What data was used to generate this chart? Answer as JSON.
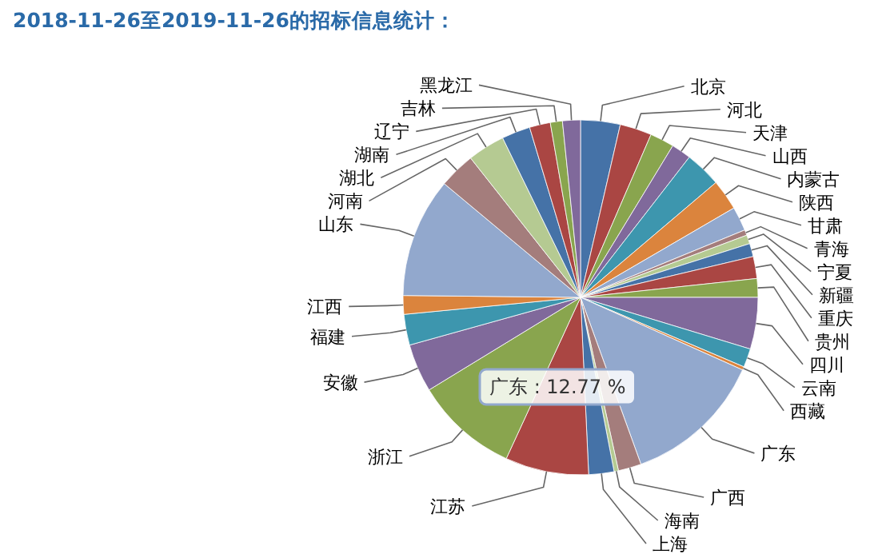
{
  "chart_data": {
    "type": "pie",
    "title": "2018-11-26至2019-11-26的招标信息统计：",
    "categories": [
      "北京",
      "河北",
      "天津",
      "山西",
      "内蒙古",
      "陕西",
      "甘肃",
      "青海",
      "宁夏",
      "新疆",
      "重庆",
      "贵州",
      "四川",
      "云南",
      "西藏",
      "广东",
      "广西",
      "海南",
      "上海",
      "江苏",
      "浙江",
      "安徽",
      "福建",
      "江西",
      "山东",
      "河南",
      "湖北",
      "湖南",
      "辽宁",
      "吉林",
      "黑龙江"
    ],
    "values": [
      3.6,
      2.9,
      2.2,
      1.8,
      3.3,
      2.8,
      2.2,
      0.5,
      0.8,
      1.2,
      2.0,
      1.7,
      4.7,
      1.7,
      0.3,
      12.77,
      2.1,
      0.4,
      2.3,
      7.6,
      9.4,
      4.4,
      2.8,
      1.7,
      10.9,
      3.3,
      3.4,
      2.6,
      1.9,
      1.1,
      1.63
    ],
    "colors": [
      "#4572a7",
      "#aa4643",
      "#89a54e",
      "#80699b",
      "#3d96ae",
      "#db843d",
      "#92a8cd",
      "#a47d7c",
      "#b5ca92",
      "#4572a7",
      "#aa4643",
      "#89a54e",
      "#80699b",
      "#3d96ae",
      "#db843d",
      "#92a8cd",
      "#a47d7c",
      "#b5ca92",
      "#4572a7",
      "#aa4643",
      "#89a54e",
      "#80699b",
      "#3d96ae",
      "#db843d",
      "#92a8cd",
      "#a47d7c",
      "#b5ca92",
      "#4572a7",
      "#aa4643",
      "#89a54e",
      "#80699b"
    ],
    "annotations": [
      "广东 : 12.77 %"
    ]
  }
}
